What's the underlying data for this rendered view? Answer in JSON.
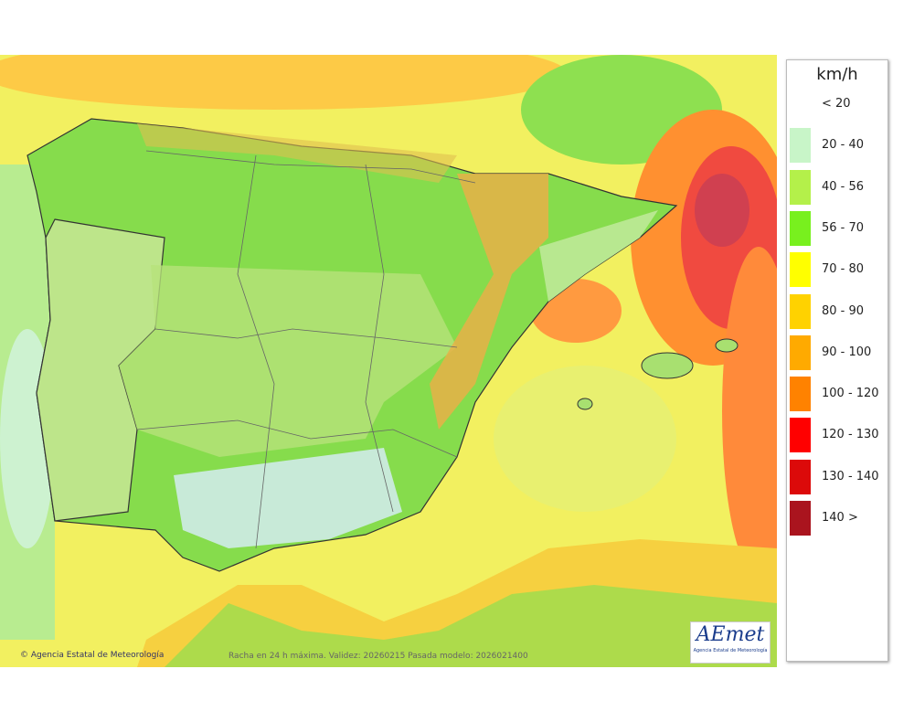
{
  "legend": {
    "title": "km/h",
    "items": [
      {
        "label": "< 20",
        "color": "#ffffff"
      },
      {
        "label": "20 - 40",
        "color": "#c8f5c8"
      },
      {
        "label": "40 - 56",
        "color": "#b4f04a"
      },
      {
        "label": "56 - 70",
        "color": "#78f01e"
      },
      {
        "label": "70 - 80",
        "color": "#ffff00"
      },
      {
        "label": "80 - 90",
        "color": "#ffd200"
      },
      {
        "label": "90 - 100",
        "color": "#ffaa00"
      },
      {
        "label": "100 - 120",
        "color": "#ff8200"
      },
      {
        "label": "120 - 130",
        "color": "#ff0000"
      },
      {
        "label": "130 - 140",
        "color": "#dc0a0a"
      },
      {
        "label": "140 >",
        "color": "#aa141e"
      }
    ]
  },
  "footer": {
    "agency": "Agencia Estatal de Meteorología",
    "caption": "Racha en 24 h máxima. Validez: 20260215 Pasada modelo: 2026021400"
  },
  "logo": {
    "name": "AEmet",
    "subtitle": "Agencia Estatal de Meteorología"
  }
}
